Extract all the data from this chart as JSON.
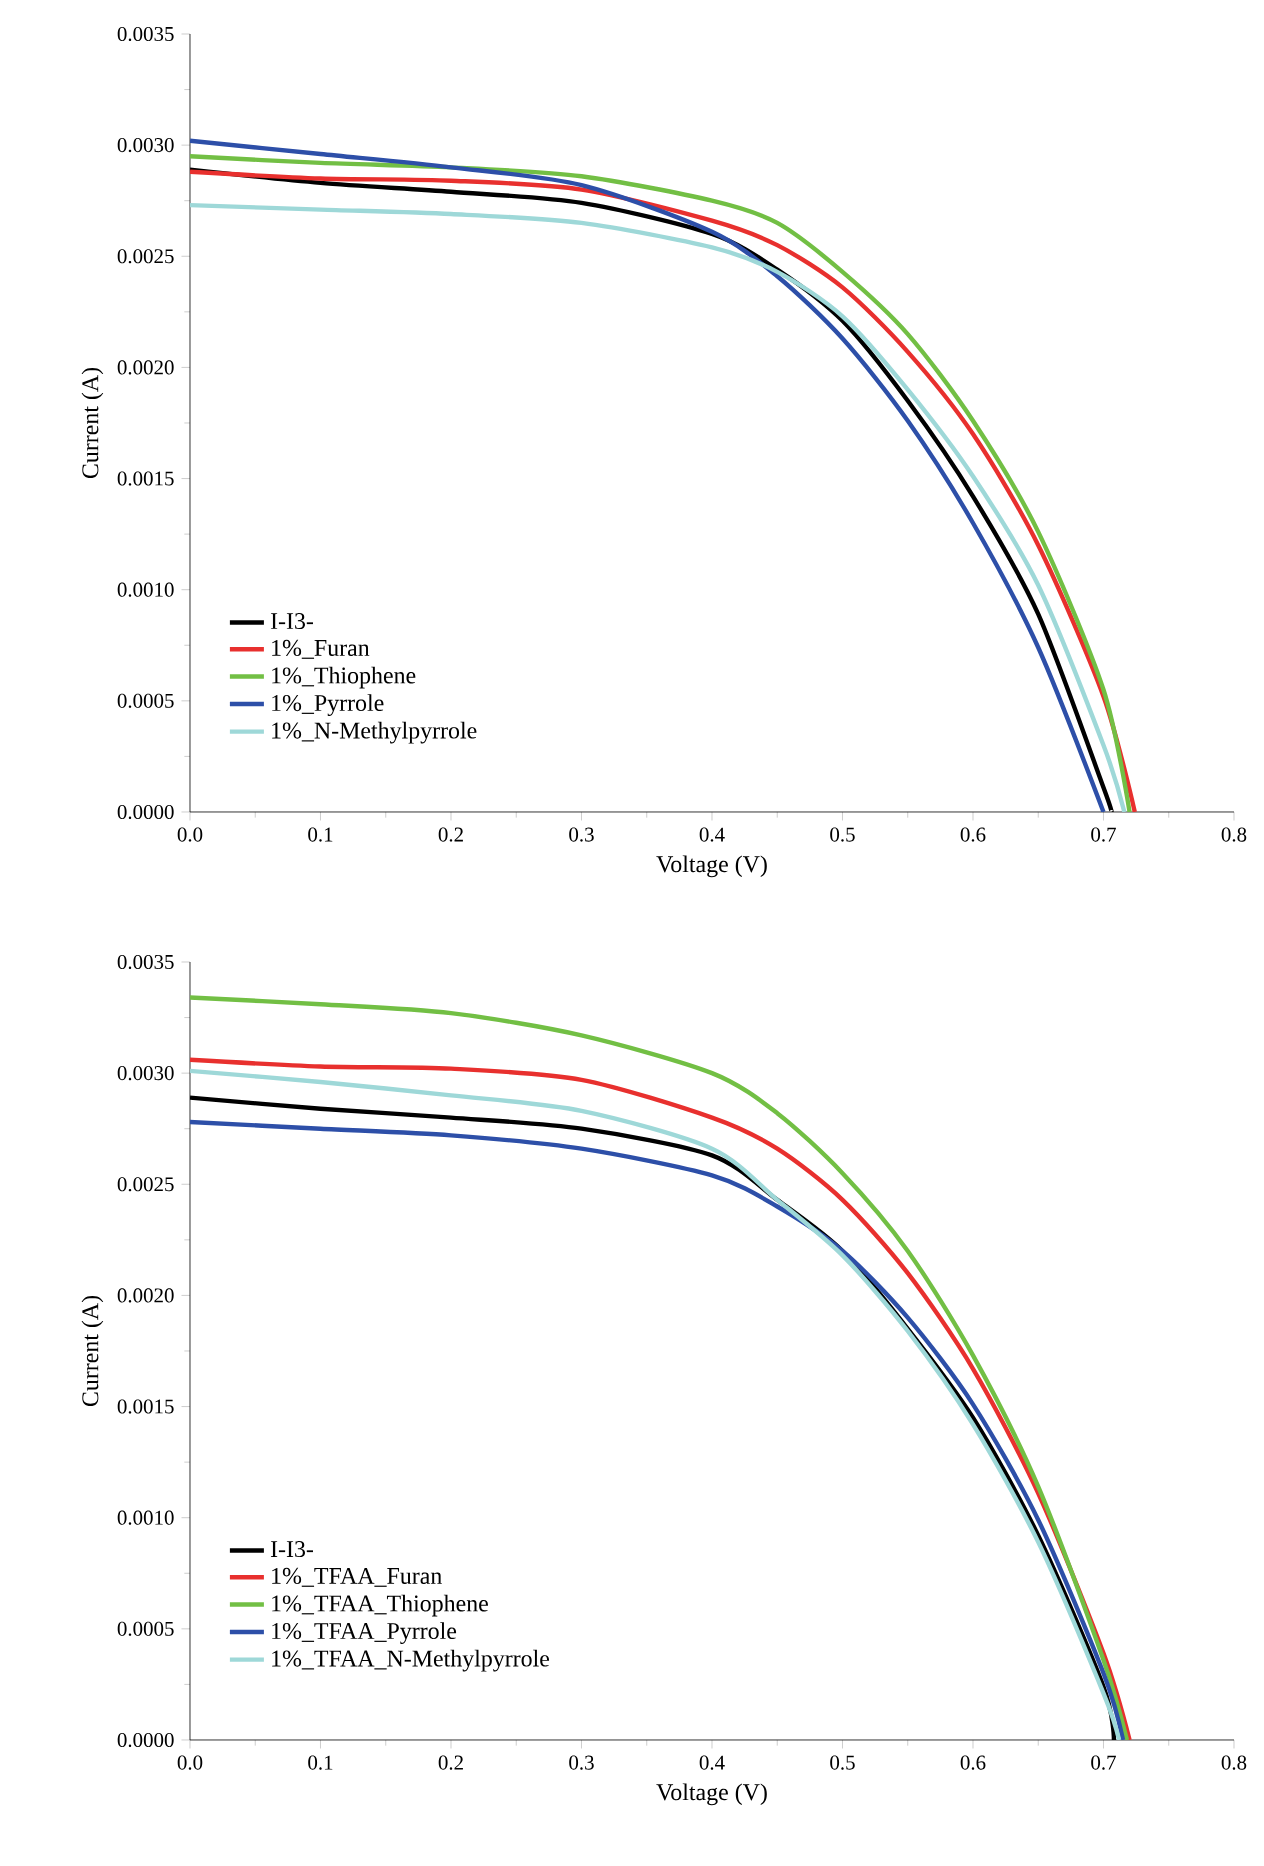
{
  "chart_data": [
    {
      "type": "line",
      "xlabel": "Voltage (V)",
      "ylabel": "Current (A)",
      "legend": "bottom left",
      "xlim": [
        0,
        0.8
      ],
      "ylim": [
        0,
        0.0035
      ],
      "xticks": [
        {
          "value": 0,
          "label": "0.0"
        },
        {
          "value": 0.1,
          "label": "0.1"
        },
        {
          "value": 0.2,
          "label": "0.2"
        },
        {
          "value": 0.3,
          "label": "0.3"
        },
        {
          "value": 0.4,
          "label": "0.4"
        },
        {
          "value": 0.5,
          "label": "0.5"
        },
        {
          "value": 0.6,
          "label": "0.6"
        },
        {
          "value": 0.7,
          "label": "0.7"
        },
        {
          "value": 0.8,
          "label": "0.8"
        }
      ],
      "yticks": [
        {
          "value": 0,
          "label": "0.0000"
        },
        {
          "value": 0.0005,
          "label": "0.0005"
        },
        {
          "value": 0.001,
          "label": "0.0010"
        },
        {
          "value": 0.0015,
          "label": "0.0015"
        },
        {
          "value": 0.002,
          "label": "0.0020"
        },
        {
          "value": 0.0025,
          "label": "0.0025"
        },
        {
          "value": 0.003,
          "label": "0.0030"
        },
        {
          "value": 0.0035,
          "label": "0.0035"
        }
      ],
      "series": [
        {
          "name": "I-I3-",
          "color": "#000000",
          "x": [
            0,
            0.1,
            0.2,
            0.3,
            0.4,
            0.45,
            0.5,
            0.55,
            0.6,
            0.65,
            0.7,
            0.706
          ],
          "values": [
            0.00289,
            0.00283,
            0.00279,
            0.00274,
            0.0026,
            0.00244,
            0.00221,
            0.00185,
            0.00142,
            0.00089,
            0.00011,
            0
          ]
        },
        {
          "name": "1%_Furan",
          "color": "#e8302e",
          "x": [
            0,
            0.1,
            0.2,
            0.3,
            0.4,
            0.45,
            0.5,
            0.55,
            0.6,
            0.65,
            0.7,
            0.724
          ],
          "values": [
            0.00288,
            0.00285,
            0.00284,
            0.0028,
            0.00266,
            0.00255,
            0.00236,
            0.00207,
            0.0017,
            0.0012,
            0.00052,
            0
          ]
        },
        {
          "name": "1%_Thiophene",
          "color": "#72bf44",
          "x": [
            0,
            0.1,
            0.2,
            0.3,
            0.4,
            0.45,
            0.5,
            0.55,
            0.6,
            0.65,
            0.7,
            0.72
          ],
          "values": [
            0.00295,
            0.00292,
            0.0029,
            0.00286,
            0.00275,
            0.00265,
            0.00243,
            0.00215,
            0.00176,
            0.00126,
            0.00055,
            0
          ]
        },
        {
          "name": "1%_Pyrrole",
          "color": "#2d4fa8",
          "x": [
            0,
            0.1,
            0.2,
            0.3,
            0.4,
            0.45,
            0.5,
            0.55,
            0.6,
            0.65,
            0.7
          ],
          "values": [
            0.00302,
            0.00296,
            0.0029,
            0.00282,
            0.00261,
            0.00241,
            0.00213,
            0.00176,
            0.0013,
            0.00074,
            0
          ]
        },
        {
          "name": "1%_N-Methylpyrrole",
          "color": "#9ed8d8",
          "x": [
            0,
            0.1,
            0.2,
            0.3,
            0.4,
            0.45,
            0.5,
            0.55,
            0.6,
            0.65,
            0.7,
            0.716
          ],
          "values": [
            0.00273,
            0.00271,
            0.00269,
            0.00265,
            0.00254,
            0.00243,
            0.00223,
            0.0019,
            0.00151,
            0.00102,
            0.0003,
            0
          ]
        }
      ]
    },
    {
      "type": "line",
      "xlabel": "Voltage (V)",
      "ylabel": "Current (A)",
      "legend": "bottom left",
      "xlim": [
        0,
        0.8
      ],
      "ylim": [
        0,
        0.0035
      ],
      "xticks": [
        {
          "value": 0,
          "label": "0.0"
        },
        {
          "value": 0.1,
          "label": "0.1"
        },
        {
          "value": 0.2,
          "label": "0.2"
        },
        {
          "value": 0.3,
          "label": "0.3"
        },
        {
          "value": 0.4,
          "label": "0.4"
        },
        {
          "value": 0.5,
          "label": "0.5"
        },
        {
          "value": 0.6,
          "label": "0.6"
        },
        {
          "value": 0.7,
          "label": "0.7"
        },
        {
          "value": 0.8,
          "label": "0.8"
        }
      ],
      "yticks": [
        {
          "value": 0,
          "label": "0.0000"
        },
        {
          "value": 0.0005,
          "label": "0.0005"
        },
        {
          "value": 0.001,
          "label": "0.0010"
        },
        {
          "value": 0.0015,
          "label": "0.0015"
        },
        {
          "value": 0.002,
          "label": "0.0020"
        },
        {
          "value": 0.0025,
          "label": "0.0025"
        },
        {
          "value": 0.003,
          "label": "0.0030"
        },
        {
          "value": 0.0035,
          "label": "0.0035"
        }
      ],
      "series": [
        {
          "name": "I-I3-",
          "color": "#000000",
          "x": [
            0,
            0.1,
            0.2,
            0.3,
            0.4,
            0.45,
            0.5,
            0.55,
            0.6,
            0.65,
            0.7,
            0.708
          ],
          "values": [
            0.00289,
            0.00284,
            0.0028,
            0.00275,
            0.00263,
            0.00243,
            0.0022,
            0.00185,
            0.00145,
            0.00092,
            0.00024,
            0
          ]
        },
        {
          "name": "1%_TFAA_Furan",
          "color": "#e8302e",
          "x": [
            0,
            0.1,
            0.2,
            0.3,
            0.4,
            0.45,
            0.5,
            0.55,
            0.6,
            0.65,
            0.7,
            0.72
          ],
          "values": [
            0.00306,
            0.00303,
            0.00302,
            0.00297,
            0.0028,
            0.00266,
            0.00243,
            0.0021,
            0.00167,
            0.00111,
            0.00039,
            0
          ]
        },
        {
          "name": "1%_TFAA_Thiophene",
          "color": "#72bf44",
          "x": [
            0,
            0.1,
            0.2,
            0.3,
            0.4,
            0.45,
            0.5,
            0.55,
            0.6,
            0.65,
            0.7,
            0.718
          ],
          "values": [
            0.00334,
            0.00331,
            0.00327,
            0.00317,
            0.003,
            0.00282,
            0.00255,
            0.0022,
            0.00173,
            0.00114,
            0.00036,
            0
          ]
        },
        {
          "name": "1%_TFAA_Pyrrole",
          "color": "#2d4fa8",
          "x": [
            0,
            0.1,
            0.2,
            0.3,
            0.4,
            0.45,
            0.5,
            0.55,
            0.6,
            0.65,
            0.7,
            0.715
          ],
          "values": [
            0.00278,
            0.00275,
            0.00272,
            0.00266,
            0.00254,
            0.0024,
            0.0022,
            0.0019,
            0.00151,
            0.00099,
            0.0003,
            0
          ]
        },
        {
          "name": "1%_TFAA_N-Methylpyrrole",
          "color": "#9ed8d8",
          "x": [
            0,
            0.1,
            0.2,
            0.3,
            0.4,
            0.45,
            0.5,
            0.55,
            0.6,
            0.65,
            0.7,
            0.712
          ],
          "values": [
            0.00301,
            0.00296,
            0.0029,
            0.00283,
            0.00266,
            0.00243,
            0.00218,
            0.00184,
            0.00142,
            0.00089,
            0.00021,
            0
          ]
        }
      ]
    }
  ]
}
